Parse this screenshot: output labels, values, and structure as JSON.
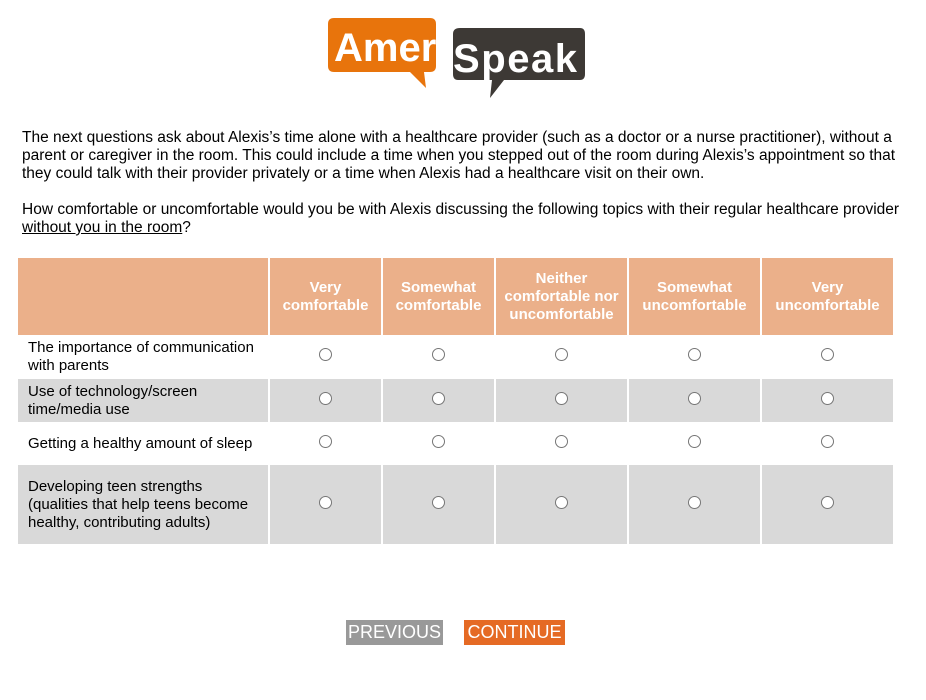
{
  "logo": {
    "text_left": "Ameri",
    "text_right": "Speak",
    "colors": {
      "orange": "#e8740c",
      "dark": "#3d3935"
    }
  },
  "intro": {
    "paragraph1": "The next questions ask about Alexis’s time alone with a healthcare provider (such as a doctor or a nurse practitioner), without a parent or caregiver in the room. This could include a time when you stepped out of the room during Alexis’s appointment so that they could talk with their provider privately or a time when Alexis had a healthcare visit on their own.",
    "question_start": "How comfortable or uncomfortable would you be with Alexis discussing the following topics with their regular healthcare provider ",
    "question_underlined": "without you in the room",
    "question_end": "?"
  },
  "grid": {
    "columns": [
      "Very comfortable",
      "Somewhat comfortable",
      "Neither comfortable nor uncomfortable",
      "Somewhat uncomfortable",
      "Very uncomfortable"
    ],
    "rows": [
      "The importance of communication with parents",
      "Use of technology/screen time/media use",
      "Getting a healthy amount of sleep",
      "Developing teen strengths (qualities that help teens become healthy, contributing adults)"
    ],
    "header_color": "#ebb08a"
  },
  "buttons": {
    "previous": "PREVIOUS",
    "continue": "CONTINUE"
  }
}
